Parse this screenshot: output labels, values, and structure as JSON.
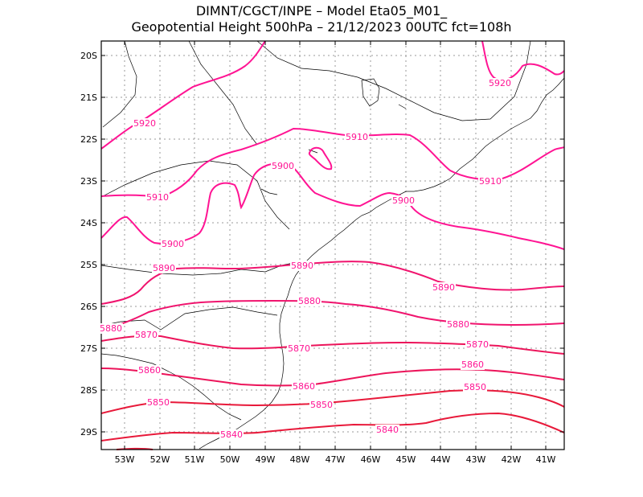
{
  "title": {
    "line1": "DIMNT/CGCT/INPE –   Model Eta05_M01_",
    "line2": "Geopotential Height 500hPa –  21/12/2023 00UTC fct=108h"
  },
  "axes": {
    "lat_labels": [
      "20S",
      "21S",
      "22S",
      "23S",
      "24S",
      "25S",
      "26S",
      "27S",
      "28S",
      "29S"
    ],
    "lon_labels": [
      "53W",
      "52W",
      "51W",
      "50W",
      "49W",
      "48W",
      "47W",
      "46W",
      "45W",
      "44W",
      "43W",
      "42W",
      "41W"
    ]
  },
  "colors": {
    "contour_low": "#e8193a",
    "contour_high": "#ff1493",
    "coast": "#000000",
    "grid": "#9a9a9a"
  },
  "contour_labels": [
    {
      "text": "5920",
      "color": "#ff1493"
    },
    {
      "text": "5920",
      "color": "#ff1493"
    },
    {
      "text": "5910",
      "color": "#ff1493"
    },
    {
      "text": "5910",
      "color": "#ff1493"
    },
    {
      "text": "5910",
      "color": "#ff1493"
    },
    {
      "text": "5900",
      "color": "#ff1493"
    },
    {
      "text": "5900",
      "color": "#ff1493"
    },
    {
      "text": "5900",
      "color": "#ff1493"
    },
    {
      "text": "5890",
      "color": "#f0146e"
    },
    {
      "text": "5890",
      "color": "#f0146e"
    },
    {
      "text": "5890",
      "color": "#f0146e"
    },
    {
      "text": "5880",
      "color": "#f0146e"
    },
    {
      "text": "5880",
      "color": "#f0146e"
    },
    {
      "text": "5880",
      "color": "#f0146e"
    },
    {
      "text": "5870",
      "color": "#ec145a"
    },
    {
      "text": "5870",
      "color": "#ec145a"
    },
    {
      "text": "5870",
      "color": "#ec145a"
    },
    {
      "text": "5860",
      "color": "#ec145a"
    },
    {
      "text": "5860",
      "color": "#ec145a"
    },
    {
      "text": "5860",
      "color": "#ec145a"
    },
    {
      "text": "5850",
      "color": "#e8193a"
    },
    {
      "text": "5850",
      "color": "#e8193a"
    },
    {
      "text": "5850",
      "color": "#e8193a"
    },
    {
      "text": "5840",
      "color": "#e8193a"
    },
    {
      "text": "5840",
      "color": "#e8193a"
    }
  ]
}
